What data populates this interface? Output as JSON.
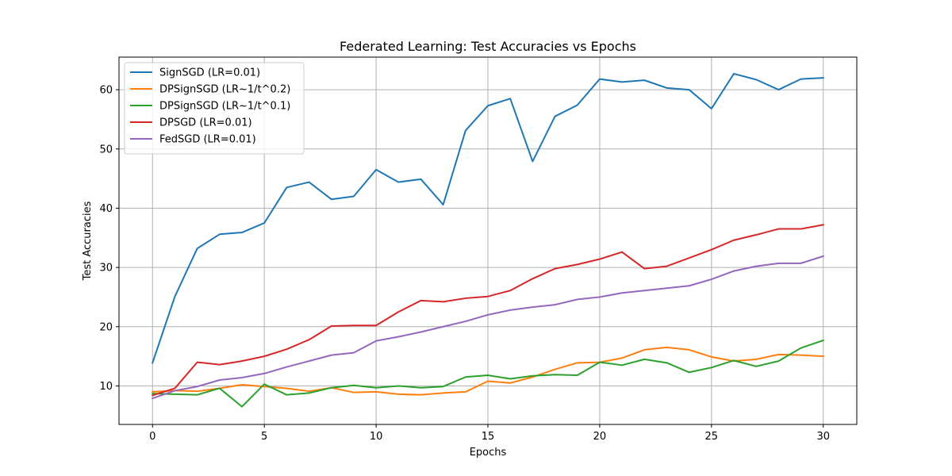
{
  "chart_data": {
    "type": "line",
    "title": "Federated Learning: Test Accuracies vs Epochs",
    "xlabel": "Epochs",
    "ylabel": "Test Accuracies",
    "xlim": [
      -1.5,
      31.5
    ],
    "ylim": [
      3.5,
      65.5
    ],
    "xticks": [
      0,
      5,
      10,
      15,
      20,
      25,
      30
    ],
    "yticks": [
      10,
      20,
      30,
      40,
      50,
      60
    ],
    "grid": true,
    "legend_position": "top-left",
    "x": [
      0,
      1,
      2,
      3,
      4,
      5,
      6,
      7,
      8,
      9,
      10,
      11,
      12,
      13,
      14,
      15,
      16,
      17,
      18,
      19,
      20,
      21,
      22,
      23,
      24,
      25,
      26,
      27,
      28,
      29,
      30
    ],
    "series": [
      {
        "name": "SignSGD (LR=0.01)",
        "color": "#1f77b4",
        "values": [
          13.9,
          25.1,
          33.2,
          35.6,
          35.9,
          37.5,
          43.5,
          44.4,
          41.5,
          42.0,
          46.5,
          44.4,
          44.9,
          40.6,
          53.1,
          57.3,
          58.5,
          47.9,
          55.5,
          57.4,
          61.8,
          61.3,
          61.6,
          60.3,
          60.0,
          56.8,
          62.7,
          61.7,
          60.0,
          61.8,
          62.0
        ]
      },
      {
        "name": "DPSignSGD (LR~1/t^0.2)",
        "color": "#ff7f0e",
        "values": [
          9.0,
          9.2,
          9.1,
          9.6,
          10.2,
          9.9,
          9.6,
          9.1,
          9.7,
          8.9,
          9.0,
          8.6,
          8.5,
          8.8,
          9.0,
          10.8,
          10.5,
          11.5,
          12.8,
          13.9,
          14.0,
          14.7,
          16.1,
          16.5,
          16.1,
          14.9,
          14.2,
          14.5,
          15.3,
          15.2,
          15.0
        ]
      },
      {
        "name": "DPSignSGD (LR~1/t^0.1)",
        "color": "#2ca02c",
        "values": [
          8.7,
          8.6,
          8.5,
          9.6,
          6.5,
          10.3,
          8.5,
          8.8,
          9.7,
          10.1,
          9.7,
          10.0,
          9.7,
          9.9,
          11.5,
          11.8,
          11.2,
          11.7,
          11.9,
          11.8,
          14.0,
          13.5,
          14.5,
          13.9,
          12.3,
          13.1,
          14.3,
          13.3,
          14.2,
          16.4,
          17.7
        ]
      },
      {
        "name": "DPSGD (LR=0.01)",
        "color": "#d62728",
        "values": [
          8.4,
          9.6,
          14.0,
          13.6,
          14.2,
          15.0,
          16.2,
          17.8,
          20.1,
          20.2,
          20.2,
          22.5,
          24.4,
          24.2,
          24.8,
          25.1,
          26.1,
          28.1,
          29.8,
          30.5,
          31.4,
          32.6,
          29.8,
          30.2,
          31.6,
          33.0,
          34.6,
          35.5,
          36.5,
          36.5,
          37.2
        ]
      },
      {
        "name": "FedSGD (LR=0.01)",
        "color": "#9467bd",
        "values": [
          7.9,
          9.2,
          9.9,
          11.0,
          11.4,
          12.1,
          13.2,
          14.2,
          15.2,
          15.6,
          17.6,
          18.3,
          19.1,
          20.0,
          20.9,
          22.0,
          22.8,
          23.3,
          23.7,
          24.6,
          25.0,
          25.7,
          26.1,
          26.5,
          26.9,
          28.0,
          29.4,
          30.2,
          30.7,
          30.7,
          31.9
        ]
      }
    ]
  }
}
